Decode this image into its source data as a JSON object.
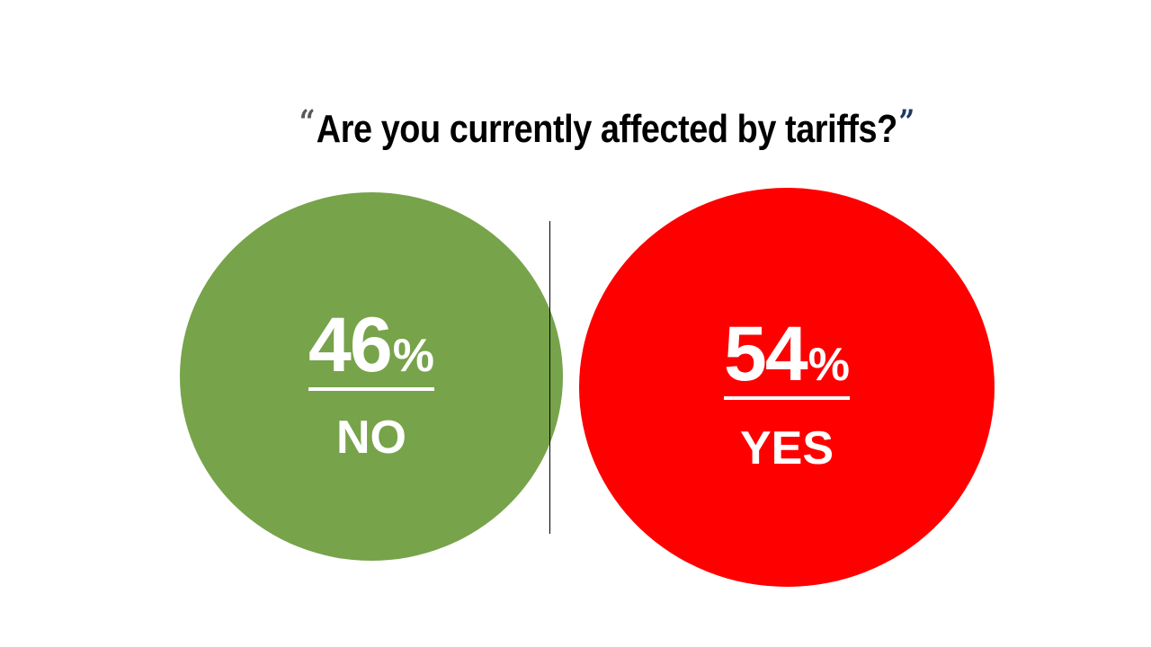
{
  "title": {
    "open_quote": "“",
    "text": "Are you currently affected by tariffs?",
    "close_quote": "”"
  },
  "chart_data": {
    "type": "pie",
    "title": "Are you currently affected by tariffs?",
    "categories": [
      "NO",
      "YES"
    ],
    "values": [
      46,
      54
    ],
    "unit": "%",
    "colors": [
      "#77a34a",
      "#ff0000"
    ]
  }
}
